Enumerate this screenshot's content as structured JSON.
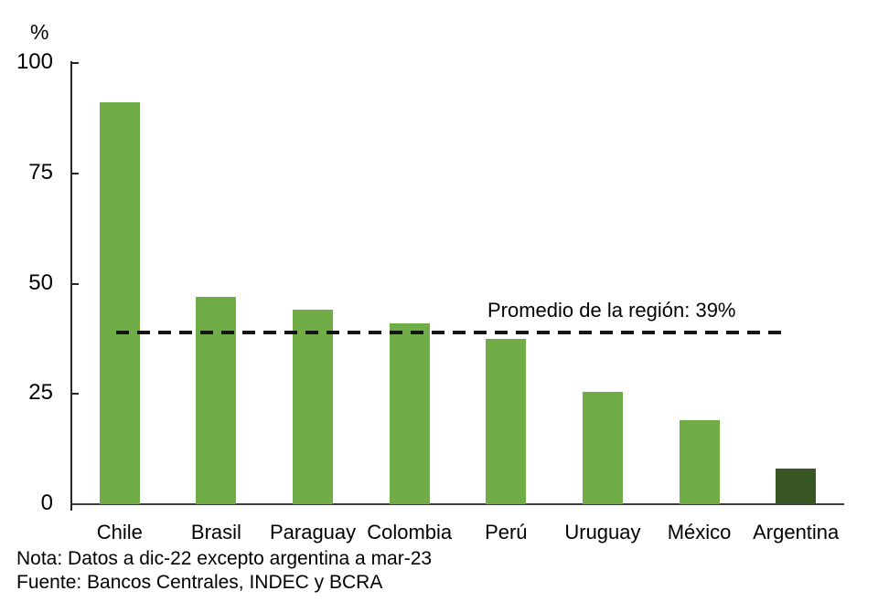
{
  "chart_data": {
    "type": "bar",
    "title": "",
    "unit_label": "%",
    "categories": [
      "Chile",
      "Brasil",
      "Paraguay",
      "Colombia",
      "Perú",
      "Uruguay",
      "México",
      "Argentina"
    ],
    "values": [
      91,
      47,
      44,
      41,
      37.5,
      25.5,
      19,
      8
    ],
    "bar_colors": [
      "#70ad47",
      "#70ad47",
      "#70ad47",
      "#70ad47",
      "#70ad47",
      "#70ad47",
      "#70ad47",
      "#375623"
    ],
    "ylabel": "%",
    "xlabel": "",
    "ylim": [
      0,
      100
    ],
    "yticks": [
      0,
      25,
      50,
      75,
      100
    ],
    "grid": false,
    "legend": "none",
    "reference_line": {
      "value": 39,
      "style": "dashed",
      "color": "#151515",
      "label": "Promedio de la región: 39%"
    }
  },
  "notes": {
    "nota": "Nota: Datos a dic-22 excepto argentina a mar-23",
    "fuente": "Fuente: Bancos Centrales, INDEC y BCRA"
  }
}
